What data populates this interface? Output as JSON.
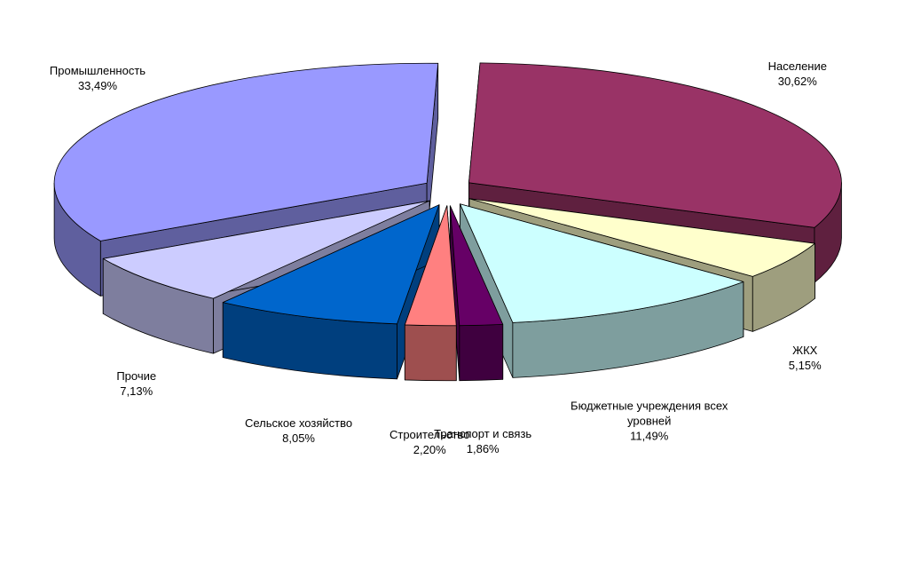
{
  "chart_data": {
    "type": "pie3d",
    "categories": [
      "Население",
      "ЖКХ",
      "Бюджетные учреждения всех уровней",
      "Транспорт и связь",
      "Строительство",
      "Сельское хозяйство",
      "Прочие",
      "Промышленность"
    ],
    "values": [
      30.62,
      5.15,
      11.49,
      1.86,
      2.2,
      8.05,
      7.13,
      33.49
    ],
    "value_labels": [
      "30,62%",
      "5,15%",
      "11,49%",
      "1,86%",
      "2,20%",
      "8,05%",
      "7,13%",
      "33,49%"
    ],
    "colors": [
      "#993366",
      "#ffffcc",
      "#ccffff",
      "#660066",
      "#ff8080",
      "#0066cc",
      "#ccccff",
      "#9999ff"
    ]
  }
}
